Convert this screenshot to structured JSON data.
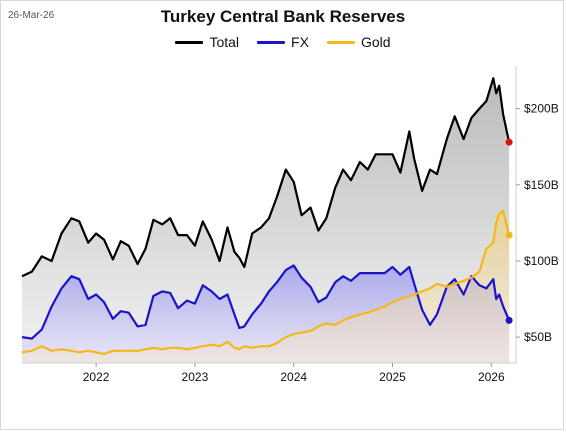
{
  "date_label": "26-Mar-26",
  "colors": {
    "total": "#000000",
    "fx": "#1a14c8",
    "gold": "#f5b817",
    "end_total": "#e01010",
    "end_fx": "#1a14c8",
    "end_gold": "#f5b817"
  },
  "chart_data": {
    "type": "line",
    "title": "Turkey Central Bank Reserves",
    "xlabel": "",
    "ylabel": "",
    "legend": "top-center",
    "grid": false,
    "xlim": [
      2021.25,
      2026.25
    ],
    "ylim": [
      33,
      228
    ],
    "x_ticks": [
      2022,
      2023,
      2024,
      2025,
      2026
    ],
    "x_tick_labels": [
      "2022",
      "2023",
      "2024",
      "2025",
      "2026"
    ],
    "y_ticks": [
      50,
      100,
      150,
      200
    ],
    "y_tick_labels": [
      "$50B",
      "$100B",
      "$150B",
      "$200B"
    ],
    "series": [
      {
        "name": "Total",
        "key": "total",
        "x": [
          2021.25,
          2021.35,
          2021.45,
          2021.55,
          2021.65,
          2021.75,
          2021.83,
          2021.92,
          2022.0,
          2022.08,
          2022.17,
          2022.25,
          2022.33,
          2022.42,
          2022.5,
          2022.58,
          2022.67,
          2022.75,
          2022.83,
          2022.92,
          2023.0,
          2023.08,
          2023.17,
          2023.25,
          2023.33,
          2023.4,
          2023.45,
          2023.5,
          2023.58,
          2023.67,
          2023.75,
          2023.83,
          2023.92,
          2024.0,
          2024.08,
          2024.17,
          2024.25,
          2024.33,
          2024.42,
          2024.5,
          2024.58,
          2024.67,
          2024.75,
          2024.83,
          2024.92,
          2025.0,
          2025.08,
          2025.17,
          2025.22,
          2025.3,
          2025.38,
          2025.45,
          2025.55,
          2025.63,
          2025.72,
          2025.8,
          2025.88,
          2025.95,
          2026.02,
          2026.05,
          2026.08,
          2026.12,
          2026.18
        ],
        "values": [
          90,
          93,
          103,
          100,
          118,
          128,
          126,
          112,
          118,
          114,
          101,
          113,
          110,
          98,
          108,
          127,
          124,
          128,
          117,
          117,
          110,
          126,
          114,
          100,
          122,
          106,
          102,
          96,
          118,
          122,
          128,
          142,
          160,
          152,
          130,
          135,
          120,
          128,
          148,
          160,
          153,
          165,
          160,
          170,
          170,
          170,
          158,
          185,
          167,
          146,
          160,
          157,
          180,
          195,
          180,
          194,
          200,
          205,
          220,
          210,
          215,
          196,
          178
        ]
      },
      {
        "name": "FX",
        "key": "fx",
        "x": [
          2021.25,
          2021.35,
          2021.45,
          2021.55,
          2021.65,
          2021.75,
          2021.83,
          2021.92,
          2022.0,
          2022.08,
          2022.17,
          2022.25,
          2022.33,
          2022.42,
          2022.5,
          2022.58,
          2022.67,
          2022.75,
          2022.83,
          2022.92,
          2023.0,
          2023.08,
          2023.17,
          2023.25,
          2023.33,
          2023.4,
          2023.45,
          2023.5,
          2023.58,
          2023.67,
          2023.75,
          2023.83,
          2023.92,
          2024.0,
          2024.08,
          2024.17,
          2024.25,
          2024.33,
          2024.42,
          2024.5,
          2024.58,
          2024.67,
          2024.75,
          2024.83,
          2024.92,
          2025.0,
          2025.08,
          2025.17,
          2025.22,
          2025.3,
          2025.38,
          2025.45,
          2025.55,
          2025.63,
          2025.72,
          2025.8,
          2025.88,
          2025.95,
          2026.02,
          2026.05,
          2026.08,
          2026.12,
          2026.18
        ],
        "values": [
          50,
          49,
          55,
          70,
          82,
          90,
          88,
          75,
          78,
          73,
          62,
          67,
          66,
          57,
          58,
          77,
          80,
          79,
          69,
          74,
          72,
          84,
          80,
          75,
          78,
          65,
          56,
          57,
          65,
          72,
          80,
          86,
          94,
          97,
          89,
          83,
          73,
          76,
          86,
          90,
          87,
          92,
          92,
          92,
          92,
          96,
          91,
          96,
          85,
          68,
          58,
          65,
          83,
          88,
          78,
          90,
          84,
          82,
          88,
          75,
          78,
          70,
          61
        ]
      },
      {
        "name": "Gold",
        "key": "gold",
        "x": [
          2021.25,
          2021.35,
          2021.45,
          2021.55,
          2021.65,
          2021.75,
          2021.83,
          2021.92,
          2022.0,
          2022.08,
          2022.17,
          2022.25,
          2022.33,
          2022.42,
          2022.5,
          2022.58,
          2022.67,
          2022.75,
          2022.83,
          2022.92,
          2023.0,
          2023.08,
          2023.17,
          2023.25,
          2023.33,
          2023.4,
          2023.45,
          2023.5,
          2023.58,
          2023.67,
          2023.75,
          2023.83,
          2023.92,
          2024.0,
          2024.08,
          2024.17,
          2024.25,
          2024.33,
          2024.42,
          2024.5,
          2024.58,
          2024.67,
          2024.75,
          2024.83,
          2024.92,
          2025.0,
          2025.08,
          2025.17,
          2025.22,
          2025.3,
          2025.38,
          2025.45,
          2025.55,
          2025.63,
          2025.72,
          2025.8,
          2025.88,
          2025.95,
          2026.02,
          2026.05,
          2026.08,
          2026.12,
          2026.18
        ],
        "values": [
          40,
          41,
          44,
          41,
          42,
          41,
          40,
          41,
          40,
          39,
          41,
          41,
          41,
          41,
          42,
          43,
          42,
          43,
          43,
          42,
          43,
          44,
          45,
          44,
          47,
          43,
          42,
          44,
          43,
          44,
          44,
          46,
          50,
          52,
          53,
          54,
          57,
          59,
          58,
          61,
          63,
          65,
          66,
          68,
          70,
          73,
          75,
          77,
          78,
          80,
          82,
          85,
          83,
          85,
          87,
          89,
          93,
          108,
          112,
          125,
          131,
          133,
          117
        ]
      }
    ]
  }
}
